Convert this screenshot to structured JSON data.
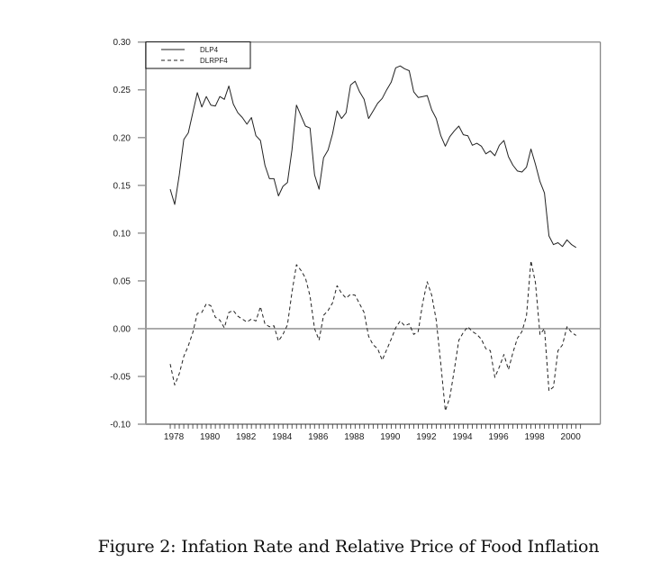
{
  "caption": "Figure 2: Infation Rate and Relative Price of Food Inflation",
  "chart_data": {
    "type": "line",
    "title": "",
    "xlabel": "",
    "ylabel": "",
    "xlim": [
      1976.4,
      2001.6
    ],
    "ylim": [
      -0.1,
      0.3
    ],
    "grid": false,
    "legend_position": "top-left",
    "zero_line": true,
    "yticks": [
      "0.30",
      "0.25",
      "0.20",
      "0.15",
      "0.10",
      "0.05",
      "0.00",
      "-0.05",
      "-0.10"
    ],
    "ytick_values": [
      0.3,
      0.25,
      0.2,
      0.15,
      0.1,
      0.05,
      0.0,
      -0.05,
      -0.1
    ],
    "xticks": [
      "1978",
      "1980",
      "1982",
      "1984",
      "1986",
      "1988",
      "1990",
      "1992",
      "1994",
      "1996",
      "1998",
      "2000"
    ],
    "xtick_values": [
      1978,
      1980,
      1982,
      1984,
      1986,
      1988,
      1990,
      1992,
      1994,
      1996,
      1998,
      2000
    ],
    "x": [
      1977.75,
      1978,
      1978.25,
      1978.5,
      1978.75,
      1979,
      1979.25,
      1979.5,
      1979.75,
      1980,
      1980.25,
      1980.5,
      1980.75,
      1981,
      1981.25,
      1981.5,
      1981.75,
      1982,
      1982.25,
      1982.5,
      1982.75,
      1983,
      1983.25,
      1983.5,
      1983.75,
      1984,
      1984.25,
      1984.5,
      1984.75,
      1985,
      1985.25,
      1985.5,
      1985.75,
      1986,
      1986.25,
      1986.5,
      1986.75,
      1987,
      1987.25,
      1987.5,
      1987.75,
      1988,
      1988.25,
      1988.5,
      1988.75,
      1989,
      1989.25,
      1989.5,
      1989.75,
      1990,
      1990.25,
      1990.5,
      1990.75,
      1991,
      1991.25,
      1991.5,
      1991.75,
      1992,
      1992.25,
      1992.5,
      1992.75,
      1993,
      1993.25,
      1993.5,
      1993.75,
      1994,
      1994.25,
      1994.5,
      1994.75,
      1995,
      1995.25,
      1995.5,
      1995.75,
      1996,
      1996.25,
      1996.5,
      1996.75,
      1997,
      1997.25,
      1997.5,
      1997.75,
      1998,
      1998.25,
      1998.5,
      1998.75,
      1999,
      1999.25,
      1999.5,
      1999.75,
      2000,
      2000.25
    ],
    "series": [
      {
        "name": "DLP4",
        "style": "solid",
        "color": "#222222",
        "values": [
          0.146,
          0.13,
          0.161,
          0.198,
          0.205,
          0.226,
          0.247,
          0.232,
          0.243,
          0.234,
          0.233,
          0.243,
          0.24,
          0.254,
          0.235,
          0.226,
          0.221,
          0.214,
          0.221,
          0.202,
          0.197,
          0.171,
          0.157,
          0.157,
          0.139,
          0.149,
          0.153,
          0.187,
          0.234,
          0.223,
          0.212,
          0.21,
          0.161,
          0.146,
          0.179,
          0.187,
          0.204,
          0.228,
          0.22,
          0.226,
          0.255,
          0.259,
          0.248,
          0.24,
          0.22,
          0.228,
          0.236,
          0.241,
          0.25,
          0.258,
          0.273,
          0.275,
          0.272,
          0.27,
          0.248,
          0.242,
          0.243,
          0.244,
          0.229,
          0.22,
          0.202,
          0.191,
          0.201,
          0.207,
          0.212,
          0.203,
          0.202,
          0.192,
          0.194,
          0.191,
          0.183,
          0.186,
          0.181,
          0.192,
          0.197,
          0.18,
          0.171,
          0.165,
          0.164,
          0.169,
          0.188,
          0.172,
          0.154,
          0.142,
          0.097,
          0.088,
          0.09,
          0.086,
          0.093,
          0.088,
          0.085
        ]
      },
      {
        "name": "DLRPF4",
        "style": "dashed",
        "color": "#222222",
        "values": [
          -0.037,
          -0.059,
          -0.047,
          -0.029,
          -0.018,
          -0.004,
          0.016,
          0.017,
          0.026,
          0.024,
          0.012,
          0.009,
          0.001,
          0.017,
          0.019,
          0.013,
          0.01,
          0.007,
          0.01,
          0.008,
          0.023,
          0.005,
          0.002,
          0.003,
          -0.013,
          -0.006,
          0.004,
          0.038,
          0.067,
          0.061,
          0.053,
          0.034,
          0.0,
          -0.012,
          0.014,
          0.019,
          0.027,
          0.045,
          0.037,
          0.032,
          0.036,
          0.035,
          0.026,
          0.017,
          -0.008,
          -0.017,
          -0.021,
          -0.033,
          -0.022,
          -0.011,
          0.001,
          0.008,
          0.003,
          0.005,
          -0.006,
          -0.003,
          0.027,
          0.049,
          0.035,
          0.009,
          -0.037,
          -0.086,
          -0.072,
          -0.043,
          -0.012,
          -0.004,
          0.002,
          -0.003,
          -0.006,
          -0.011,
          -0.021,
          -0.023,
          -0.051,
          -0.04,
          -0.027,
          -0.043,
          -0.025,
          -0.01,
          -0.003,
          0.013,
          0.071,
          0.048,
          -0.006,
          0.0,
          -0.065,
          -0.061,
          -0.023,
          -0.017,
          0.002,
          -0.004,
          -0.007
        ]
      }
    ]
  },
  "colors": {
    "axis": "#999999",
    "zero_line": "#9a9a9a",
    "series": "#222222",
    "frame": "#666666"
  }
}
